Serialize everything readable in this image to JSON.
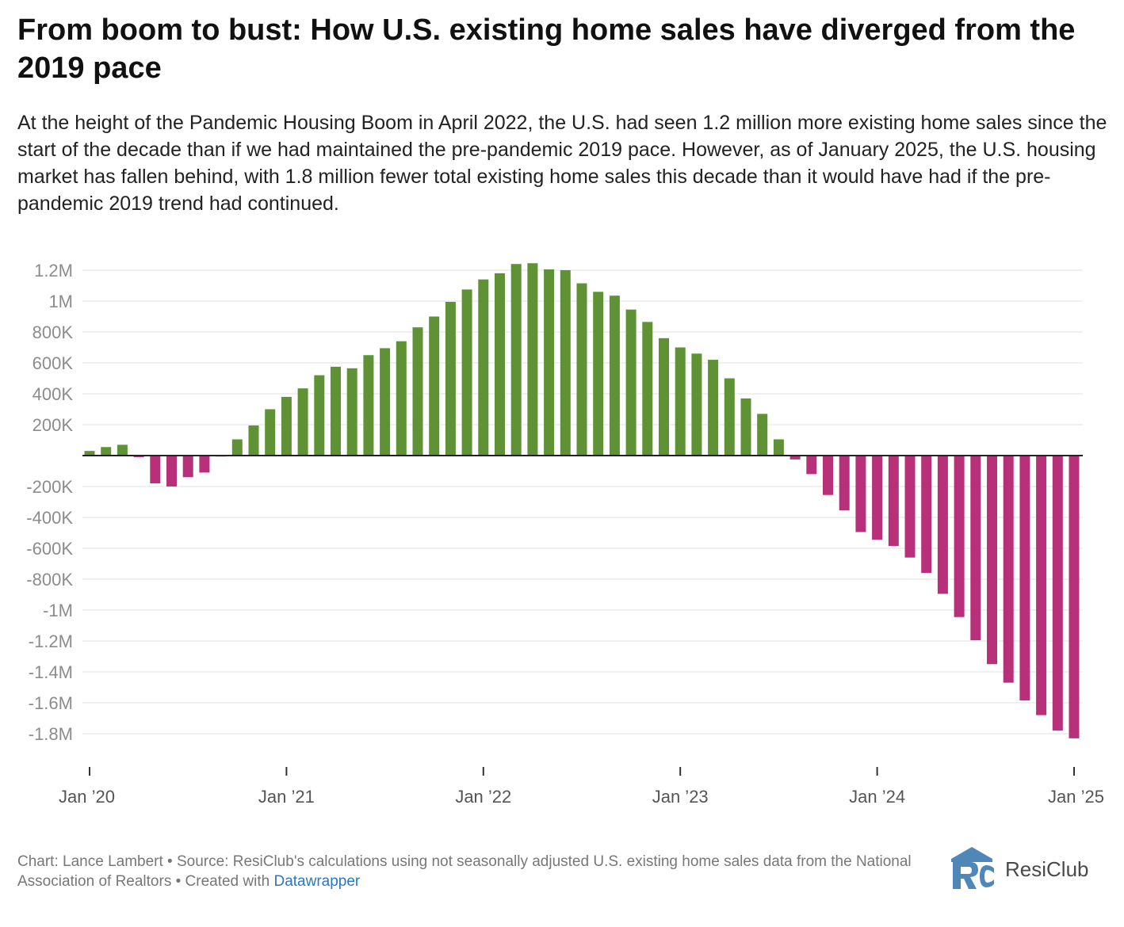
{
  "header": {
    "title": "From boom to bust: How U.S. existing home sales have diverged from the 2019 pace",
    "subtitle": "At the height of the Pandemic Housing Boom in April 2022, the U.S. had seen 1.2 million more existing home sales since the start of the decade than if we had maintained the pre-pandemic 2019 pace. However, as of January 2025, the U.S. housing market has fallen behind, with 1.8 million fewer total existing home sales this decade than it would have had if the pre-pandemic 2019 trend had continued."
  },
  "chart_data": {
    "type": "bar",
    "title": "",
    "xlabel": "",
    "ylabel": "",
    "ylim": [
      -1900000,
      1300000
    ],
    "grid": true,
    "yticks": [
      1200000,
      1000000,
      800000,
      600000,
      400000,
      200000,
      0,
      -200000,
      -400000,
      -600000,
      -800000,
      -1000000,
      -1200000,
      -1400000,
      -1600000,
      -1800000
    ],
    "ytick_labels": [
      "1.2M",
      "1M",
      "800K",
      "600K",
      "400K",
      "200K",
      "",
      "-200K",
      "-400K",
      "-600K",
      "-800K",
      "-1M",
      "-1.2M",
      "-1.4M",
      "-1.6M",
      "-1.8M"
    ],
    "xticks": [
      "Jan '20",
      "Jan '21",
      "Jan '22",
      "Jan '23",
      "Jan '24",
      "Jan '25"
    ],
    "xtick_labels": [
      "Jan ’20",
      "Jan ’21",
      "Jan ’22",
      "Jan ’23",
      "Jan ’24",
      "Jan ’25"
    ],
    "positive_color": "#5e9234",
    "negative_color": "#b8307a",
    "categories": [
      "Jan '20",
      "Feb '20",
      "Mar '20",
      "Apr '20",
      "May '20",
      "Jun '20",
      "Jul '20",
      "Aug '20",
      "Sep '20",
      "Oct '20",
      "Nov '20",
      "Dec '20",
      "Jan '21",
      "Feb '21",
      "Mar '21",
      "Apr '21",
      "May '21",
      "Jun '21",
      "Jul '21",
      "Aug '21",
      "Sep '21",
      "Oct '21",
      "Nov '21",
      "Dec '21",
      "Jan '22",
      "Feb '22",
      "Mar '22",
      "Apr '22",
      "May '22",
      "Jun '22",
      "Jul '22",
      "Aug '22",
      "Sep '22",
      "Oct '22",
      "Nov '22",
      "Dec '22",
      "Jan '23",
      "Feb '23",
      "Mar '23",
      "Apr '23",
      "May '23",
      "Jun '23",
      "Jul '23",
      "Aug '23",
      "Sep '23",
      "Oct '23",
      "Nov '23",
      "Dec '23",
      "Jan '24",
      "Feb '24",
      "Mar '24",
      "Apr '24",
      "May '24",
      "Jun '24",
      "Jul '24",
      "Aug '24",
      "Sep '24",
      "Oct '24",
      "Nov '24",
      "Dec '24",
      "Jan '25"
    ],
    "values": [
      30000,
      55000,
      70000,
      -10000,
      -180000,
      -200000,
      -140000,
      -110000,
      -5000,
      105000,
      195000,
      300000,
      380000,
      435000,
      520000,
      575000,
      565000,
      650000,
      695000,
      740000,
      830000,
      900000,
      995000,
      1075000,
      1140000,
      1180000,
      1240000,
      1245000,
      1205000,
      1200000,
      1115000,
      1060000,
      1035000,
      945000,
      865000,
      760000,
      700000,
      660000,
      620000,
      500000,
      370000,
      270000,
      105000,
      -25000,
      -120000,
      -255000,
      -355000,
      -495000,
      -545000,
      -585000,
      -660000,
      -760000,
      -895000,
      -1045000,
      -1195000,
      -1350000,
      -1470000,
      -1585000,
      -1680000,
      -1780000,
      -1830000
    ]
  },
  "footer": {
    "credit": "Chart: Lance Lambert • Source: ResiClub's calculations using not seasonally adjusted U.S. existing home sales data from the National Association of Realtors • Created with",
    "tool_link": "Datawrapper"
  },
  "brand": {
    "name": "ResiClub",
    "logo_icon": "resiclub-logo-icon",
    "logo_color": "#4f87b8"
  }
}
